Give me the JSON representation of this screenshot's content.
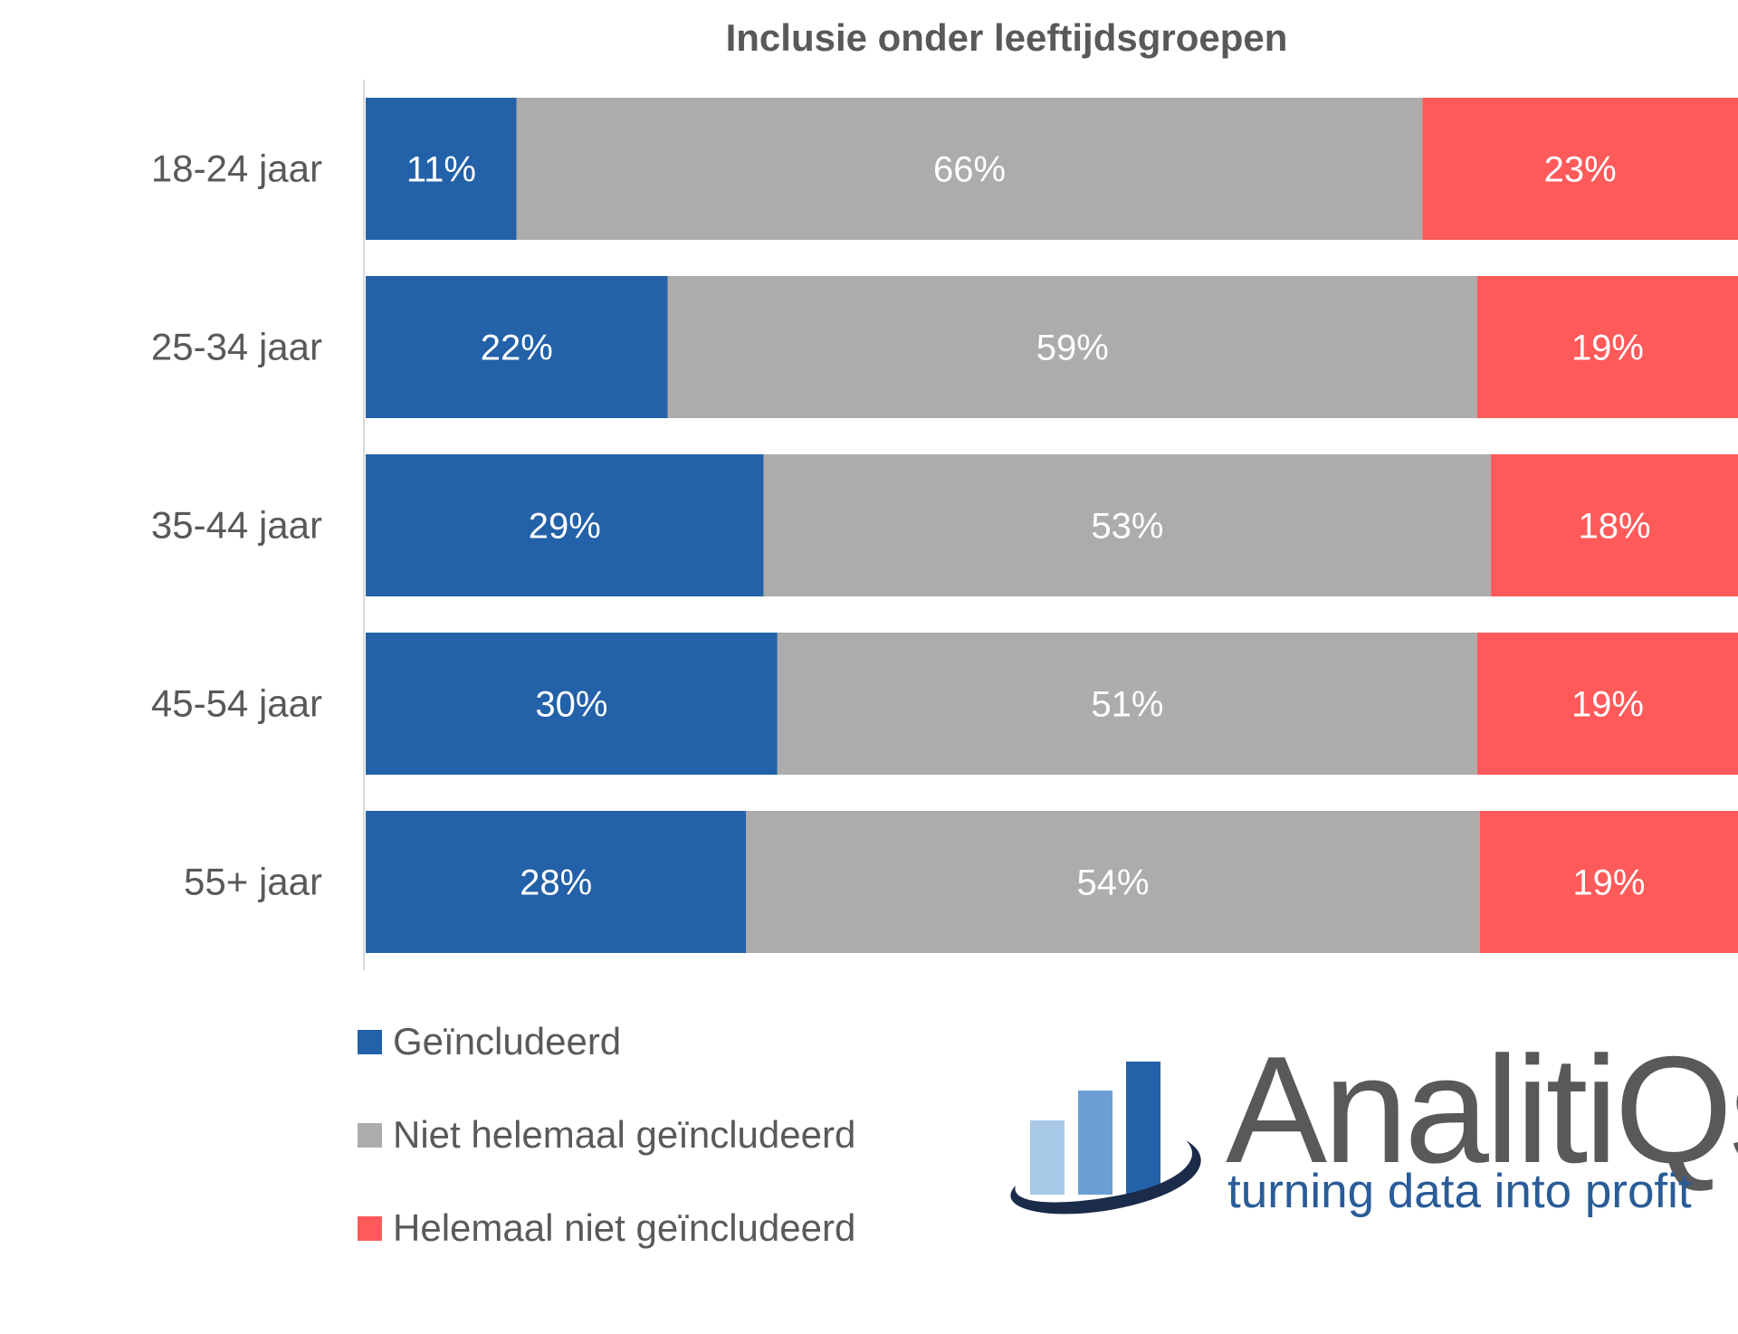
{
  "chart_data": {
    "type": "bar",
    "orientation": "horizontal",
    "stacked": true,
    "title": "Inclusie onder leeftijdsgroepen",
    "categories": [
      "18-24 jaar",
      "25-34 jaar",
      "35-44 jaar",
      "45-54 jaar",
      "55+ jaar"
    ],
    "series": [
      {
        "name": "Geïncludeerd",
        "color": "#2361a8",
        "values": [
          11,
          22,
          29,
          30,
          28
        ],
        "labels": [
          "11%",
          "22%",
          "29%",
          "30%",
          "28%"
        ]
      },
      {
        "name": "Niet helemaal geïncludeerd",
        "color": "#aeabab",
        "values": [
          66,
          59,
          53,
          51,
          54
        ],
        "labels": [
          "66%",
          "59%",
          "53%",
          "51%",
          "54%"
        ]
      },
      {
        "name": "Helemaal niet geïncludeerd",
        "color": "#ff5a5a",
        "values": [
          23,
          19,
          18,
          19,
          19
        ],
        "labels": [
          "23%",
          "19%",
          "18%",
          "19%",
          "19%"
        ]
      }
    ],
    "legend_position": "bottom-left",
    "grid": false
  },
  "logo": {
    "name": "AnalitiQs",
    "tagline": "turning data into profit"
  }
}
